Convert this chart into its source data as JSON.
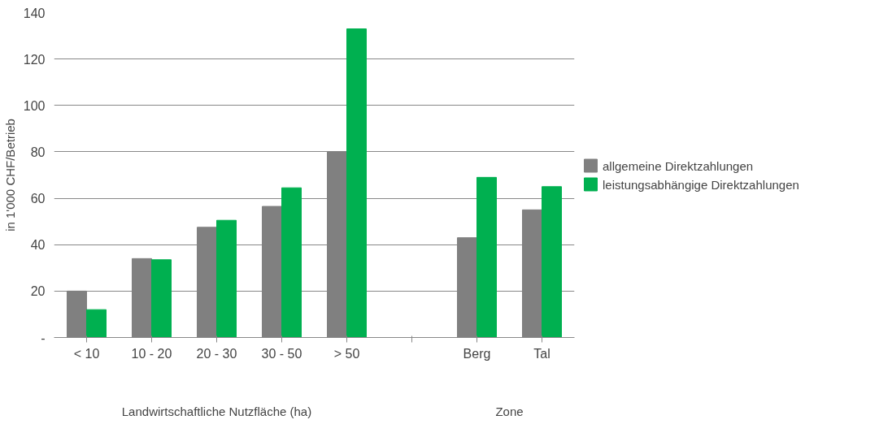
{
  "chart_data": {
    "type": "bar",
    "ylabel": "in 1'000 CHF/Betrieb",
    "xlabel": "Landwirtschaftliche Nutzfläche (ha)",
    "annotations": [
      "Zone"
    ],
    "categories": [
      "< 10",
      "10 - 20",
      "20 - 30",
      "30 - 50",
      "> 50",
      null,
      "Berg",
      "Tal"
    ],
    "series": [
      {
        "name": "allgemeine Direktzahlungen",
        "color": "#808080",
        "values": [
          20,
          34,
          47.5,
          56.5,
          80,
          null,
          43,
          55
        ]
      },
      {
        "name": "leistungsabhängige Direktzahlungen",
        "color": "#00b050",
        "values": [
          12,
          33.5,
          50.5,
          64.5,
          133,
          null,
          69,
          65
        ]
      }
    ],
    "ylim": [
      0,
      140
    ],
    "yticks": [
      {
        "value": 0,
        "label": "-"
      },
      20,
      40,
      60,
      80,
      100,
      120,
      140
    ],
    "grid": "y",
    "legend": "right"
  }
}
